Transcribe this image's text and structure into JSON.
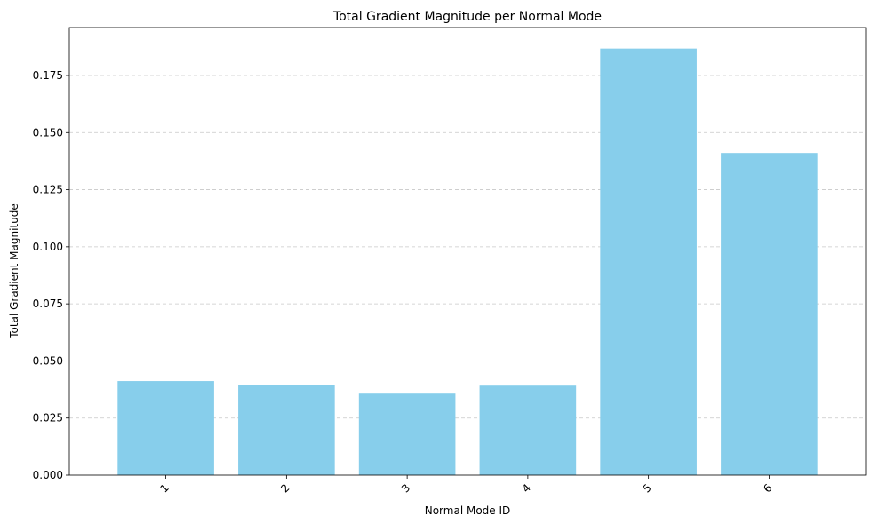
{
  "chart_data": {
    "type": "bar",
    "title": "Total Gradient Magnitude per Normal Mode",
    "xlabel": "Normal Mode ID",
    "ylabel": "Total Gradient Magnitude",
    "categories": [
      "1",
      "2",
      "3",
      "4",
      "5",
      "6"
    ],
    "values": [
      0.0412,
      0.0396,
      0.0357,
      0.0392,
      0.1868,
      0.1411
    ],
    "ylim": [
      0,
      0.196
    ],
    "yticks": [
      "0.000",
      "0.025",
      "0.050",
      "0.075",
      "0.100",
      "0.125",
      "0.150",
      "0.175"
    ],
    "ytick_values": [
      0,
      0.025,
      0.05,
      0.075,
      0.1,
      0.125,
      0.15,
      0.175
    ],
    "xtick_rotation_deg": 45,
    "grid": "y-dashed",
    "colors": {
      "bar": "#87ceeb",
      "grid": "#c8c8c8",
      "axis": "#000000"
    }
  }
}
